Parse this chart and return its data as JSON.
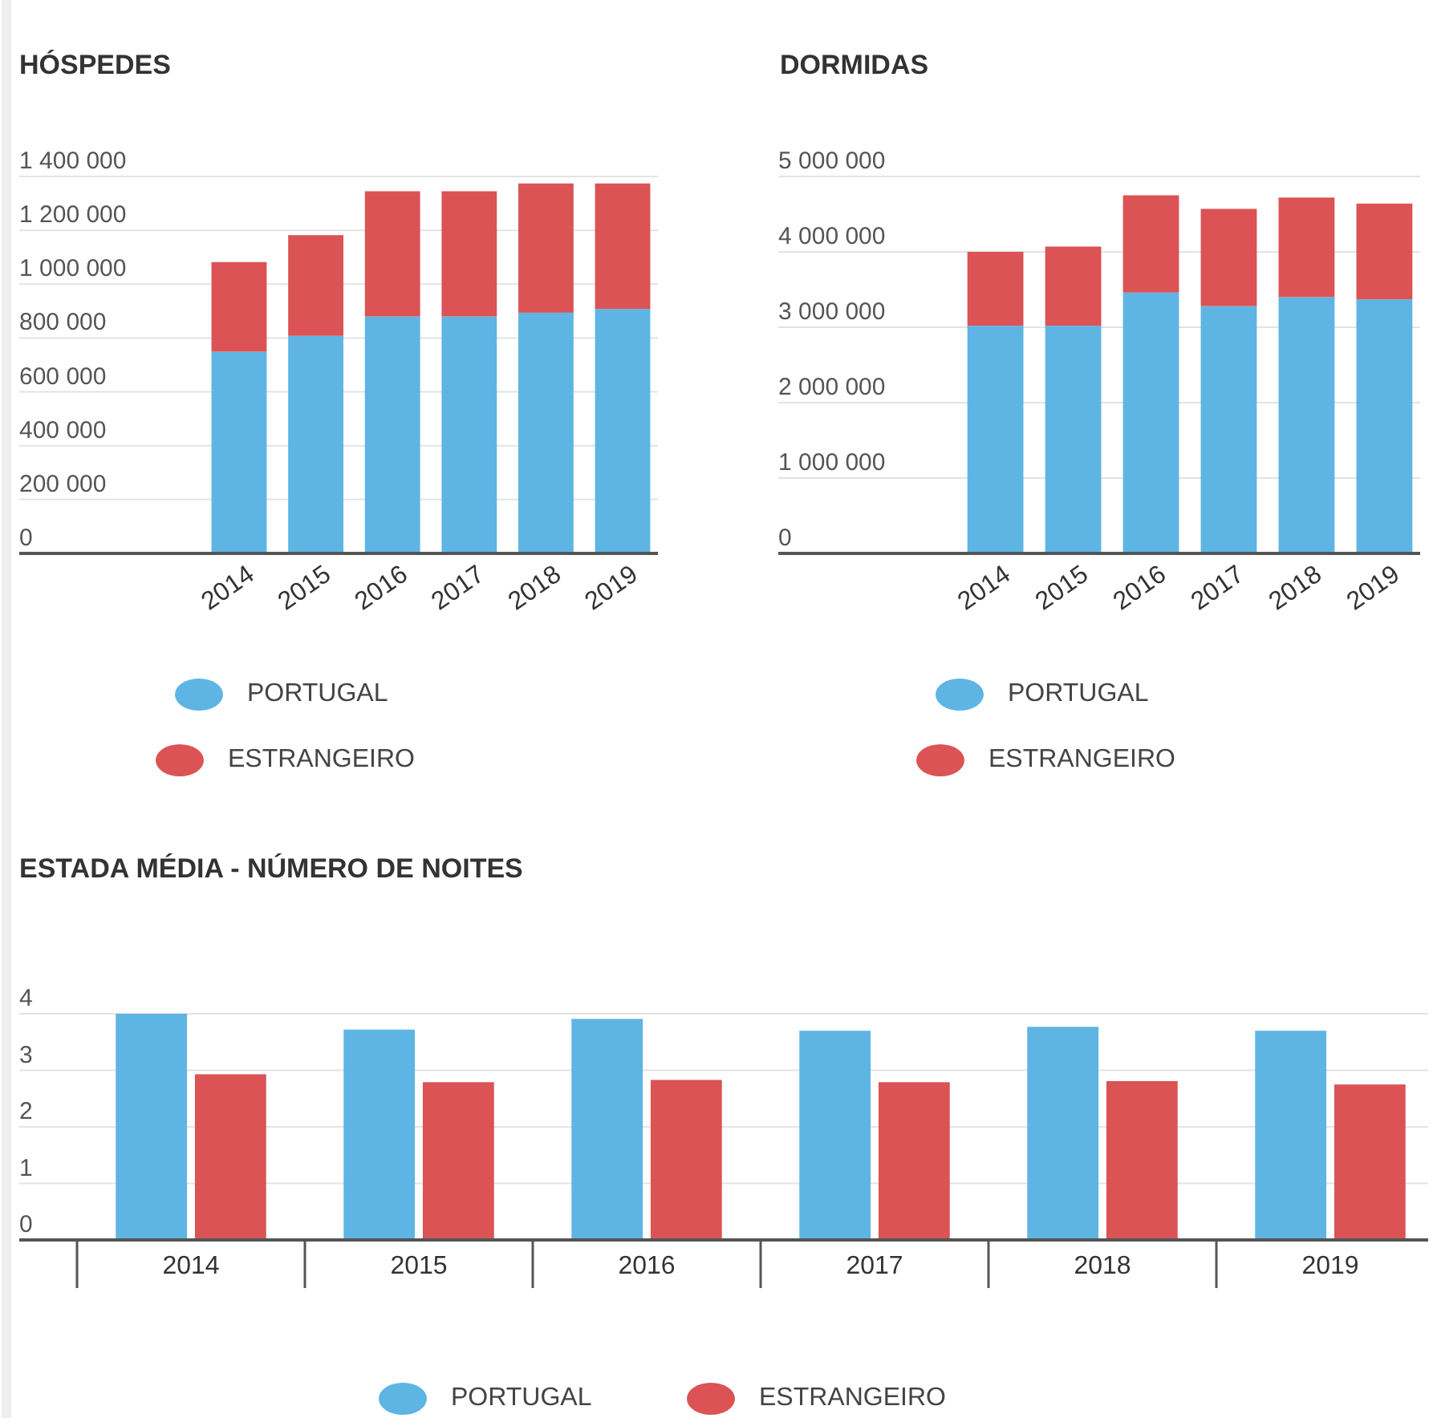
{
  "chart_data": [
    {
      "type": "bar",
      "title": "HÓSPEDES",
      "categories": [
        "2014",
        "2015",
        "2016",
        "2017",
        "2018",
        "2019"
      ],
      "stacked": true,
      "ylim": [
        0,
        1400000
      ],
      "yticks": [
        {
          "value": 0,
          "label": "0"
        },
        {
          "value": 200000,
          "label": "200 000"
        },
        {
          "value": 400000,
          "label": "400 000"
        },
        {
          "value": 600000,
          "label": "600 000"
        },
        {
          "value": 800000,
          "label": "800 000"
        },
        {
          "value": 1000000,
          "label": "1 000 000"
        },
        {
          "value": 1200000,
          "label": "1 200 000"
        },
        {
          "value": 1400000,
          "label": "1 400 000"
        }
      ],
      "grid": "y",
      "legend": "bottom",
      "series": [
        {
          "name": "PORTUGAL",
          "color": "#5eb5e3",
          "values": [
            749000,
            808000,
            880000,
            880000,
            894000,
            908000
          ]
        },
        {
          "name": "ESTRANGEIRO",
          "color": "#db5355",
          "values": [
            333000,
            374000,
            465000,
            465000,
            480000,
            466000
          ]
        }
      ]
    },
    {
      "type": "bar",
      "title": "DORMIDAS",
      "categories": [
        "2014",
        "2015",
        "2016",
        "2017",
        "2018",
        "2019"
      ],
      "stacked": true,
      "ylim": [
        0,
        5000000
      ],
      "yticks": [
        {
          "value": 0,
          "label": "0"
        },
        {
          "value": 1000000,
          "label": "1 000 000"
        },
        {
          "value": 2000000,
          "label": "2 000 000"
        },
        {
          "value": 3000000,
          "label": "3 000 000"
        },
        {
          "value": 4000000,
          "label": "4 000 000"
        },
        {
          "value": 5000000,
          "label": "5 000 000"
        }
      ],
      "grid": "y",
      "legend": "bottom",
      "series": [
        {
          "name": "PORTUGAL",
          "color": "#5eb5e3",
          "values": [
            3020000,
            3020000,
            3460000,
            3280000,
            3400000,
            3370000
          ]
        },
        {
          "name": "ESTRANGEIRO",
          "color": "#db5355",
          "values": [
            980000,
            1050000,
            1290000,
            1290000,
            1320000,
            1270000
          ]
        }
      ]
    },
    {
      "type": "bar",
      "title": "ESTADA MÉDIA - NÚMERO DE NOITES",
      "categories": [
        "2014",
        "2015",
        "2016",
        "2017",
        "2018",
        "2019"
      ],
      "ylim": [
        0,
        4
      ],
      "yticks": [
        0,
        1,
        2,
        3,
        4
      ],
      "grid": "y",
      "legend": "bottom",
      "series": [
        {
          "name": "PORTUGAL",
          "color": "#5eb5e3",
          "values": [
            4.0,
            3.72,
            3.91,
            3.7,
            3.77,
            3.7
          ]
        },
        {
          "name": "ESTRANGEIRO",
          "color": "#db5355",
          "values": [
            2.93,
            2.79,
            2.83,
            2.79,
            2.81,
            2.75
          ]
        }
      ]
    }
  ]
}
